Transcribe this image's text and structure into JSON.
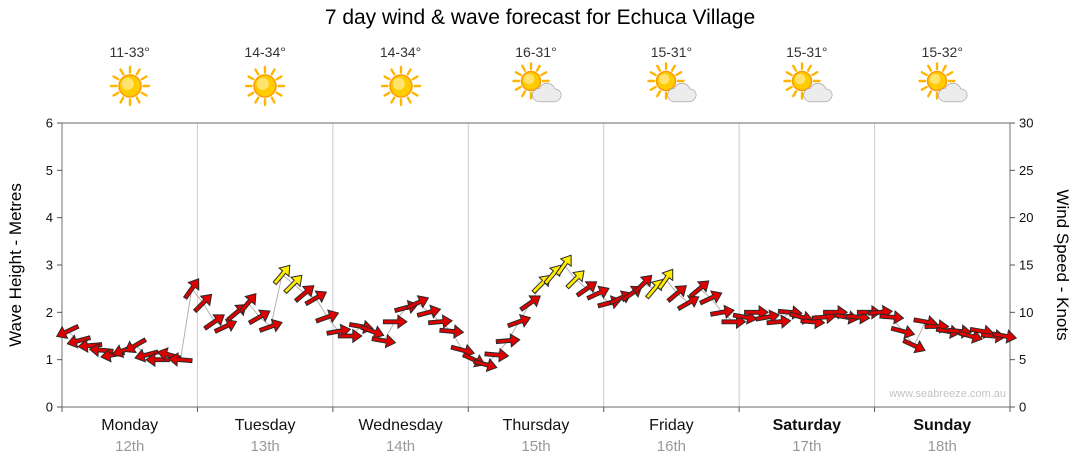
{
  "title": "7 day wind & wave forecast for Echuca Village",
  "watermark": "www.seabreeze.com.au",
  "days": [
    {
      "name": "Monday",
      "date": "12th",
      "temp": "11-33°",
      "icon": "sunny",
      "bold": false
    },
    {
      "name": "Tuesday",
      "date": "13th",
      "temp": "14-34°",
      "icon": "sunny",
      "bold": false
    },
    {
      "name": "Wednesday",
      "date": "14th",
      "temp": "14-34°",
      "icon": "sunny",
      "bold": false
    },
    {
      "name": "Thursday",
      "date": "15th",
      "temp": "16-31°",
      "icon": "partly-cloudy",
      "bold": false
    },
    {
      "name": "Friday",
      "date": "16th",
      "temp": "15-31°",
      "icon": "partly-cloudy",
      "bold": false
    },
    {
      "name": "Saturday",
      "date": "17th",
      "temp": "15-31°",
      "icon": "partly-cloudy",
      "bold": true
    },
    {
      "name": "Sunday",
      "date": "18th",
      "temp": "15-32°",
      "icon": "partly-cloudy",
      "bold": true
    }
  ],
  "chart_data": {
    "type": "line",
    "title": "7 day wind & wave forecast for Echuca Village",
    "categories": [
      "Monday",
      "Tuesday",
      "Wednesday",
      "Thursday",
      "Friday",
      "Saturday",
      "Sunday"
    ],
    "left_axis": {
      "label": "Wave Height - Metres",
      "min": 0,
      "max": 6,
      "ticks": [
        0,
        1,
        2,
        3,
        4,
        5,
        6
      ]
    },
    "right_axis": {
      "label": "Wind Speed - Knots",
      "min": 0,
      "max": 30,
      "ticks": [
        0,
        5,
        10,
        15,
        20,
        25,
        30
      ]
    },
    "colors": {
      "red_arrow": "#e00000",
      "yellow_arrow": "#ffec00",
      "arrow_outline": "#2a2a2a",
      "trend_line": "#b8b0b0",
      "grid": "#cccccc",
      "frame": "#888888"
    },
    "wind_points_format": [
      "knots",
      "direction_deg",
      "color(r=red,y=yellow)"
    ],
    "wind_points": [
      [
        8,
        155,
        "r"
      ],
      [
        7,
        165,
        "r"
      ],
      [
        6.5,
        175,
        "r"
      ],
      [
        6,
        185,
        "r"
      ],
      [
        5.5,
        170,
        "r"
      ],
      [
        6,
        160,
        "r"
      ],
      [
        6.5,
        150,
        "r"
      ],
      [
        5.5,
        165,
        "r"
      ],
      [
        5,
        180,
        "r"
      ],
      [
        5.5,
        195,
        "r"
      ],
      [
        5,
        185,
        "r"
      ],
      [
        12.5,
        -55,
        "r"
      ],
      [
        11,
        -45,
        "r"
      ],
      [
        9,
        -35,
        "r"
      ],
      [
        8.5,
        -25,
        "r"
      ],
      [
        10,
        -40,
        "r"
      ],
      [
        11,
        -50,
        "r"
      ],
      [
        9.5,
        -30,
        "r"
      ],
      [
        8.5,
        -20,
        "r"
      ],
      [
        14,
        -50,
        "y"
      ],
      [
        13,
        -45,
        "y"
      ],
      [
        12,
        -40,
        "r"
      ],
      [
        11.5,
        -30,
        "r"
      ],
      [
        9.5,
        -20,
        "r"
      ],
      [
        8,
        -10,
        "r"
      ],
      [
        7.5,
        0,
        "r"
      ],
      [
        8.5,
        10,
        "r"
      ],
      [
        8,
        20,
        "r"
      ],
      [
        7,
        10,
        "r"
      ],
      [
        9,
        0,
        "r"
      ],
      [
        10.5,
        -15,
        "r"
      ],
      [
        11,
        -25,
        "r"
      ],
      [
        10,
        -15,
        "r"
      ],
      [
        9,
        -5,
        "r"
      ],
      [
        8,
        5,
        "r"
      ],
      [
        6,
        15,
        "r"
      ],
      [
        5,
        25,
        "r"
      ],
      [
        4.5,
        15,
        "r"
      ],
      [
        5.5,
        5,
        "r"
      ],
      [
        7,
        -5,
        "r"
      ],
      [
        9,
        -20,
        "r"
      ],
      [
        11,
        -35,
        "r"
      ],
      [
        13,
        -45,
        "y"
      ],
      [
        14,
        -50,
        "y"
      ],
      [
        15,
        -55,
        "y"
      ],
      [
        13.5,
        -45,
        "y"
      ],
      [
        12.5,
        -35,
        "r"
      ],
      [
        12,
        -25,
        "r"
      ],
      [
        11,
        -15,
        "r"
      ],
      [
        11.5,
        -25,
        "r"
      ],
      [
        12,
        -35,
        "r"
      ],
      [
        13,
        -45,
        "r"
      ],
      [
        12.5,
        -50,
        "y"
      ],
      [
        13.5,
        -55,
        "y"
      ],
      [
        12,
        -40,
        "r"
      ],
      [
        11,
        -30,
        "r"
      ],
      [
        12.5,
        -40,
        "r"
      ],
      [
        11.5,
        -25,
        "r"
      ],
      [
        10,
        -10,
        "r"
      ],
      [
        9,
        0,
        "r"
      ],
      [
        9.5,
        10,
        "r"
      ],
      [
        10,
        0,
        "r"
      ],
      [
        9.5,
        -10,
        "r"
      ],
      [
        9,
        -5,
        "r"
      ],
      [
        10,
        5,
        "r"
      ],
      [
        9.5,
        15,
        "r"
      ],
      [
        9,
        5,
        "r"
      ],
      [
        9.5,
        -5,
        "r"
      ],
      [
        10,
        0,
        "r"
      ],
      [
        9.5,
        10,
        "r"
      ],
      [
        9.5,
        5,
        "r"
      ],
      [
        10,
        0,
        "r"
      ],
      [
        10,
        -5,
        "r"
      ],
      [
        9.5,
        5,
        "r"
      ],
      [
        8,
        15,
        "r"
      ],
      [
        6.5,
        25,
        "r"
      ],
      [
        9,
        10,
        "r"
      ],
      [
        8.5,
        0,
        "r"
      ],
      [
        8,
        10,
        "r"
      ],
      [
        8,
        5,
        "r"
      ],
      [
        7.5,
        15,
        "r"
      ],
      [
        8,
        10,
        "r"
      ],
      [
        7.5,
        5,
        "r"
      ],
      [
        7.5,
        10,
        "r"
      ]
    ]
  }
}
